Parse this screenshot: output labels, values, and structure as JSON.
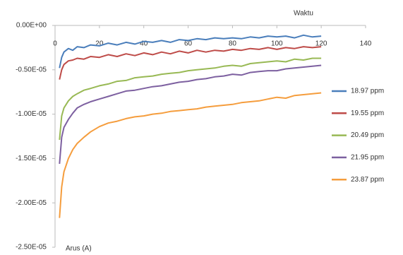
{
  "chart_data": {
    "type": "line",
    "x_label": "Waktu",
    "y_label": "Arus (A)",
    "legend": "right",
    "xlim": [
      0,
      140
    ],
    "xticks": [
      0,
      20,
      40,
      60,
      80,
      100,
      120,
      140
    ],
    "ylim": [
      -2.5e-05,
      0
    ],
    "yticks": [
      {
        "value": 0,
        "label": "0.00E+00"
      },
      {
        "value": -5e-06,
        "label": "-0.50E-05"
      },
      {
        "value": -1e-05,
        "label": "-1.00E-05"
      },
      {
        "value": -1.5e-05,
        "label": "-1.50E-05"
      },
      {
        "value": -2e-05,
        "label": "-2.00E-05"
      },
      {
        "value": -2.5e-05,
        "label": "-2.50E-05"
      }
    ],
    "x": [
      2,
      3,
      4,
      6,
      8,
      10,
      13,
      16,
      20,
      24,
      28,
      32,
      36,
      40,
      44,
      48,
      52,
      56,
      60,
      64,
      68,
      72,
      76,
      80,
      84,
      88,
      92,
      96,
      100,
      104,
      108,
      112,
      116,
      120
    ],
    "series": [
      {
        "name": "18.97 ppm",
        "color": "#4a7ebb",
        "values": [
          -4.8e-06,
          -3.6e-06,
          -3e-06,
          -2.6e-06,
          -2.8e-06,
          -2.4e-06,
          -2.5e-06,
          -2.2e-06,
          -2.3e-06,
          -2e-06,
          -2.2e-06,
          -1.9e-06,
          -2.1e-06,
          -1.8e-06,
          -1.9e-06,
          -1.7e-06,
          -1.9e-06,
          -1.6e-06,
          -1.7e-06,
          -1.5e-06,
          -1.6e-06,
          -1.4e-06,
          -1.5e-06,
          -1.4e-06,
          -1.5e-06,
          -1.3e-06,
          -1.4e-06,
          -1.2e-06,
          -1.3e-06,
          -1.2e-06,
          -1.4e-06,
          -1.1e-06,
          -1.3e-06,
          -1.2e-06
        ]
      },
      {
        "name": "19.55 ppm",
        "color": "#be4b48",
        "values": [
          -6.1e-06,
          -5e-06,
          -4.4e-06,
          -4e-06,
          -3.9e-06,
          -3.7e-06,
          -3.8e-06,
          -3.5e-06,
          -3.6e-06,
          -3.3e-06,
          -3.5e-06,
          -3.2e-06,
          -3.4e-06,
          -3.1e-06,
          -3.3e-06,
          -3e-06,
          -3.2e-06,
          -2.9e-06,
          -3.1e-06,
          -2.8e-06,
          -3e-06,
          -2.8e-06,
          -2.9e-06,
          -2.7e-06,
          -2.8e-06,
          -2.6e-06,
          -2.7e-06,
          -2.5e-06,
          -2.7e-06,
          -2.5e-06,
          -2.6e-06,
          -2.4e-06,
          -2.5e-06,
          -2.4e-06
        ]
      },
      {
        "name": "20.49 ppm",
        "color": "#98b954",
        "values": [
          -1.29e-05,
          -1.02e-05,
          -9.3e-06,
          -8.5e-06,
          -8e-06,
          -7.7e-06,
          -7.3e-06,
          -7.1e-06,
          -6.8e-06,
          -6.6e-06,
          -6.3e-06,
          -6.2e-06,
          -5.9e-06,
          -5.8e-06,
          -5.7e-06,
          -5.5e-06,
          -5.4e-06,
          -5.3e-06,
          -5.1e-06,
          -5e-06,
          -4.9e-06,
          -4.8e-06,
          -4.6e-06,
          -4.5e-06,
          -4.6e-06,
          -4.3e-06,
          -4.2e-06,
          -4.1e-06,
          -4e-06,
          -4.1e-06,
          -3.8e-06,
          -3.9e-06,
          -3.7e-06,
          -3.7e-06
        ]
      },
      {
        "name": "21.95 ppm",
        "color": "#7d60a0",
        "values": [
          -1.56e-05,
          -1.26e-05,
          -1.15e-05,
          -1.06e-05,
          -9.9e-06,
          -9.3e-06,
          -8.9e-06,
          -8.6e-06,
          -8.3e-06,
          -8e-06,
          -7.7e-06,
          -7.4e-06,
          -7.3e-06,
          -7.1e-06,
          -6.9e-06,
          -6.8e-06,
          -6.6e-06,
          -6.4e-06,
          -6.3e-06,
          -6.1e-06,
          -6e-06,
          -5.8e-06,
          -5.7e-06,
          -5.5e-06,
          -5.6e-06,
          -5.3e-06,
          -5.2e-06,
          -5.1e-06,
          -5.1e-06,
          -4.9e-06,
          -4.8e-06,
          -4.7e-06,
          -4.6e-06,
          -4.5e-06
        ]
      },
      {
        "name": "23.87 ppm",
        "color": "#f59d3d",
        "values": [
          -2.17e-05,
          -1.82e-05,
          -1.65e-05,
          -1.5e-05,
          -1.4e-05,
          -1.33e-05,
          -1.26e-05,
          -1.2e-05,
          -1.14e-05,
          -1.1e-05,
          -1.08e-05,
          -1.05e-05,
          -1.03e-05,
          -1.02e-05,
          -1e-05,
          -9.9e-06,
          -9.7e-06,
          -9.6e-06,
          -9.5e-06,
          -9.4e-06,
          -9.2e-06,
          -9.1e-06,
          -9e-06,
          -8.9e-06,
          -8.7e-06,
          -8.6e-06,
          -8.5e-06,
          -8.3e-06,
          -8.1e-06,
          -8.2e-06,
          -7.9e-06,
          -7.8e-06,
          -7.7e-06,
          -7.6e-06
        ]
      }
    ]
  }
}
